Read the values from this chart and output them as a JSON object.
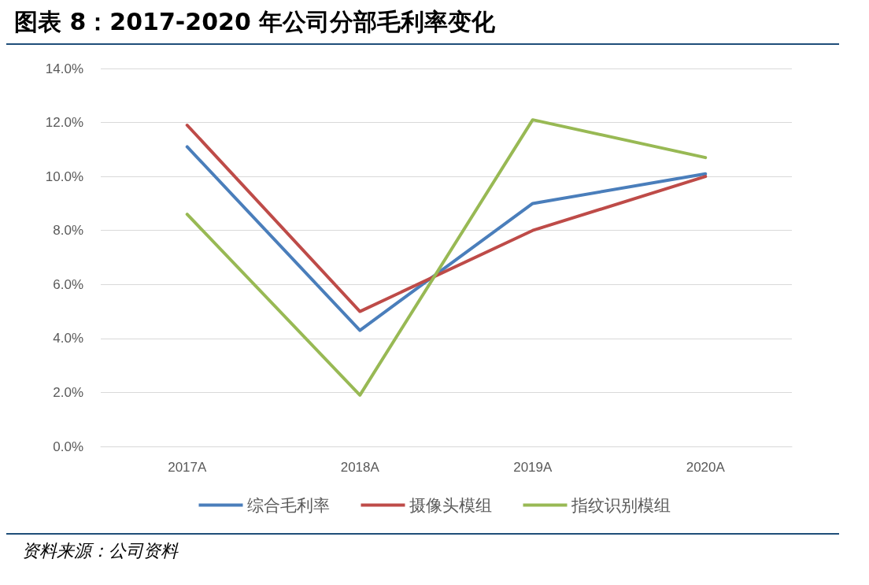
{
  "chart_data": {
    "type": "line",
    "title": "图表 8：2017-2020 年公司分部毛利率变化",
    "categories": [
      "2017A",
      "2018A",
      "2019A",
      "2020A"
    ],
    "series": [
      {
        "name": "综合毛利率",
        "color": "#4a7ebb",
        "values": [
          11.1,
          4.3,
          9.0,
          10.1
        ]
      },
      {
        "name": "摄像头模组",
        "color": "#be4b48",
        "values": [
          11.9,
          5.0,
          8.0,
          10.0
        ]
      },
      {
        "name": "指纹识别模组",
        "color": "#98b954",
        "values": [
          8.6,
          1.9,
          12.1,
          10.7
        ]
      }
    ],
    "ylim": [
      0,
      14
    ],
    "yticks": [
      {
        "value": 0,
        "label": "0.0%"
      },
      {
        "value": 2,
        "label": "2.0%"
      },
      {
        "value": 4,
        "label": "4.0%"
      },
      {
        "value": 6,
        "label": "6.0%"
      },
      {
        "value": 8,
        "label": "8.0%"
      },
      {
        "value": 10,
        "label": "10.0%"
      },
      {
        "value": 12,
        "label": "12.0%"
      },
      {
        "value": 14,
        "label": "14.0%"
      }
    ],
    "grid": "y",
    "legend": "bottom",
    "marker": "none",
    "line_style": "solid",
    "annotations": [
      "资料来源：公司资料"
    ]
  }
}
